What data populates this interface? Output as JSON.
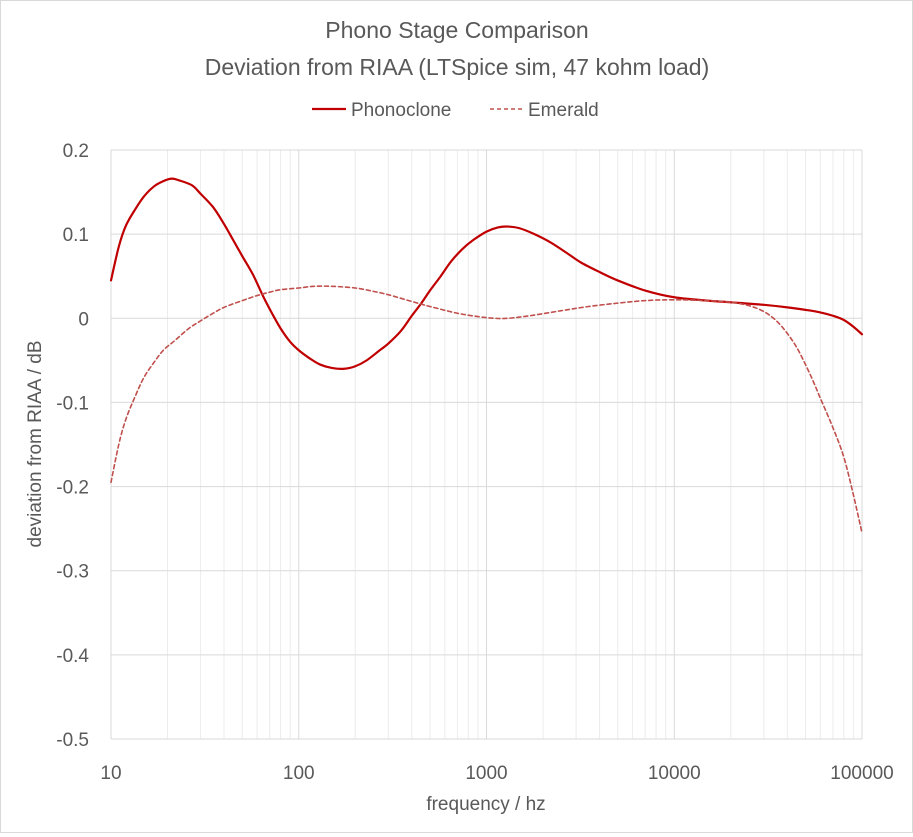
{
  "chart_data": {
    "type": "line",
    "title": "Phono Stage Comparison",
    "subtitle": "Deviation from RIAA (LTSpice sim, 47 kohm load)",
    "xlabel": "frequency / hz",
    "ylabel": "deviation from RIAA / dB",
    "x_scale": "log",
    "xlim": [
      10,
      100000
    ],
    "ylim": [
      -0.5,
      0.2
    ],
    "x_ticks": [
      "10",
      "100",
      "1000",
      "10000",
      "100000"
    ],
    "y_ticks": [
      "0.2",
      "0.1",
      "0",
      "-0.1",
      "-0.2",
      "-0.3",
      "-0.4",
      "-0.5"
    ],
    "grid": true,
    "legend_position": "top",
    "series": [
      {
        "name": "Phonoclone",
        "color": "#c00000",
        "style": "solid",
        "points": [
          [
            10,
            0.045
          ],
          [
            11,
            0.085
          ],
          [
            12,
            0.11
          ],
          [
            13.5,
            0.13
          ],
          [
            15,
            0.145
          ],
          [
            17,
            0.157
          ],
          [
            19,
            0.163
          ],
          [
            21,
            0.166
          ],
          [
            23,
            0.164
          ],
          [
            27,
            0.158
          ],
          [
            30,
            0.148
          ],
          [
            35,
            0.132
          ],
          [
            40,
            0.112
          ],
          [
            45,
            0.092
          ],
          [
            50,
            0.074
          ],
          [
            57,
            0.052
          ],
          [
            65,
            0.025
          ],
          [
            72,
            0.006
          ],
          [
            80,
            -0.012
          ],
          [
            90,
            -0.028
          ],
          [
            100,
            -0.038
          ],
          [
            115,
            -0.048
          ],
          [
            130,
            -0.055
          ],
          [
            150,
            -0.059
          ],
          [
            175,
            -0.06
          ],
          [
            200,
            -0.057
          ],
          [
            230,
            -0.05
          ],
          [
            270,
            -0.038
          ],
          [
            300,
            -0.03
          ],
          [
            350,
            -0.015
          ],
          [
            400,
            0.003
          ],
          [
            450,
            0.018
          ],
          [
            500,
            0.033
          ],
          [
            570,
            0.05
          ],
          [
            650,
            0.068
          ],
          [
            750,
            0.083
          ],
          [
            850,
            0.093
          ],
          [
            1000,
            0.103
          ],
          [
            1150,
            0.108
          ],
          [
            1300,
            0.109
          ],
          [
            1500,
            0.107
          ],
          [
            1800,
            0.1
          ],
          [
            2200,
            0.09
          ],
          [
            2700,
            0.077
          ],
          [
            3200,
            0.066
          ],
          [
            4000,
            0.055
          ],
          [
            5000,
            0.045
          ],
          [
            7000,
            0.033
          ],
          [
            10000,
            0.025
          ],
          [
            15000,
            0.021
          ],
          [
            20000,
            0.019
          ],
          [
            30000,
            0.016
          ],
          [
            40000,
            0.013
          ],
          [
            50000,
            0.01
          ],
          [
            60000,
            0.007
          ],
          [
            70000,
            0.003
          ],
          [
            80000,
            -0.002
          ],
          [
            90000,
            -0.01
          ],
          [
            100000,
            -0.019
          ]
        ]
      },
      {
        "name": "Emerald",
        "color": "#c0504d",
        "style": "dashed",
        "points": [
          [
            10,
            -0.195
          ],
          [
            11,
            -0.15
          ],
          [
            12,
            -0.12
          ],
          [
            13.5,
            -0.092
          ],
          [
            15,
            -0.07
          ],
          [
            17,
            -0.052
          ],
          [
            19,
            -0.038
          ],
          [
            22,
            -0.026
          ],
          [
            26,
            -0.012
          ],
          [
            30,
            -0.003
          ],
          [
            35,
            0.006
          ],
          [
            40,
            0.013
          ],
          [
            50,
            0.021
          ],
          [
            60,
            0.027
          ],
          [
            70,
            0.031
          ],
          [
            80,
            0.034
          ],
          [
            100,
            0.036
          ],
          [
            120,
            0.038
          ],
          [
            150,
            0.038
          ],
          [
            200,
            0.036
          ],
          [
            250,
            0.032
          ],
          [
            300,
            0.028
          ],
          [
            400,
            0.02
          ],
          [
            500,
            0.014
          ],
          [
            700,
            0.006
          ],
          [
            900,
            0.002
          ],
          [
            1100,
            0.0
          ],
          [
            1300,
            0.0
          ],
          [
            1700,
            0.003
          ],
          [
            2500,
            0.009
          ],
          [
            3500,
            0.014
          ],
          [
            5000,
            0.018
          ],
          [
            7000,
            0.021
          ],
          [
            10000,
            0.022
          ],
          [
            15000,
            0.021
          ],
          [
            20000,
            0.019
          ],
          [
            25000,
            0.015
          ],
          [
            30000,
            0.008
          ],
          [
            35000,
            -0.003
          ],
          [
            40000,
            -0.018
          ],
          [
            45000,
            -0.035
          ],
          [
            50000,
            -0.055
          ],
          [
            55000,
            -0.075
          ],
          [
            60000,
            -0.095
          ],
          [
            70000,
            -0.13
          ],
          [
            80000,
            -0.165
          ],
          [
            90000,
            -0.21
          ],
          [
            100000,
            -0.255
          ]
        ]
      }
    ]
  }
}
